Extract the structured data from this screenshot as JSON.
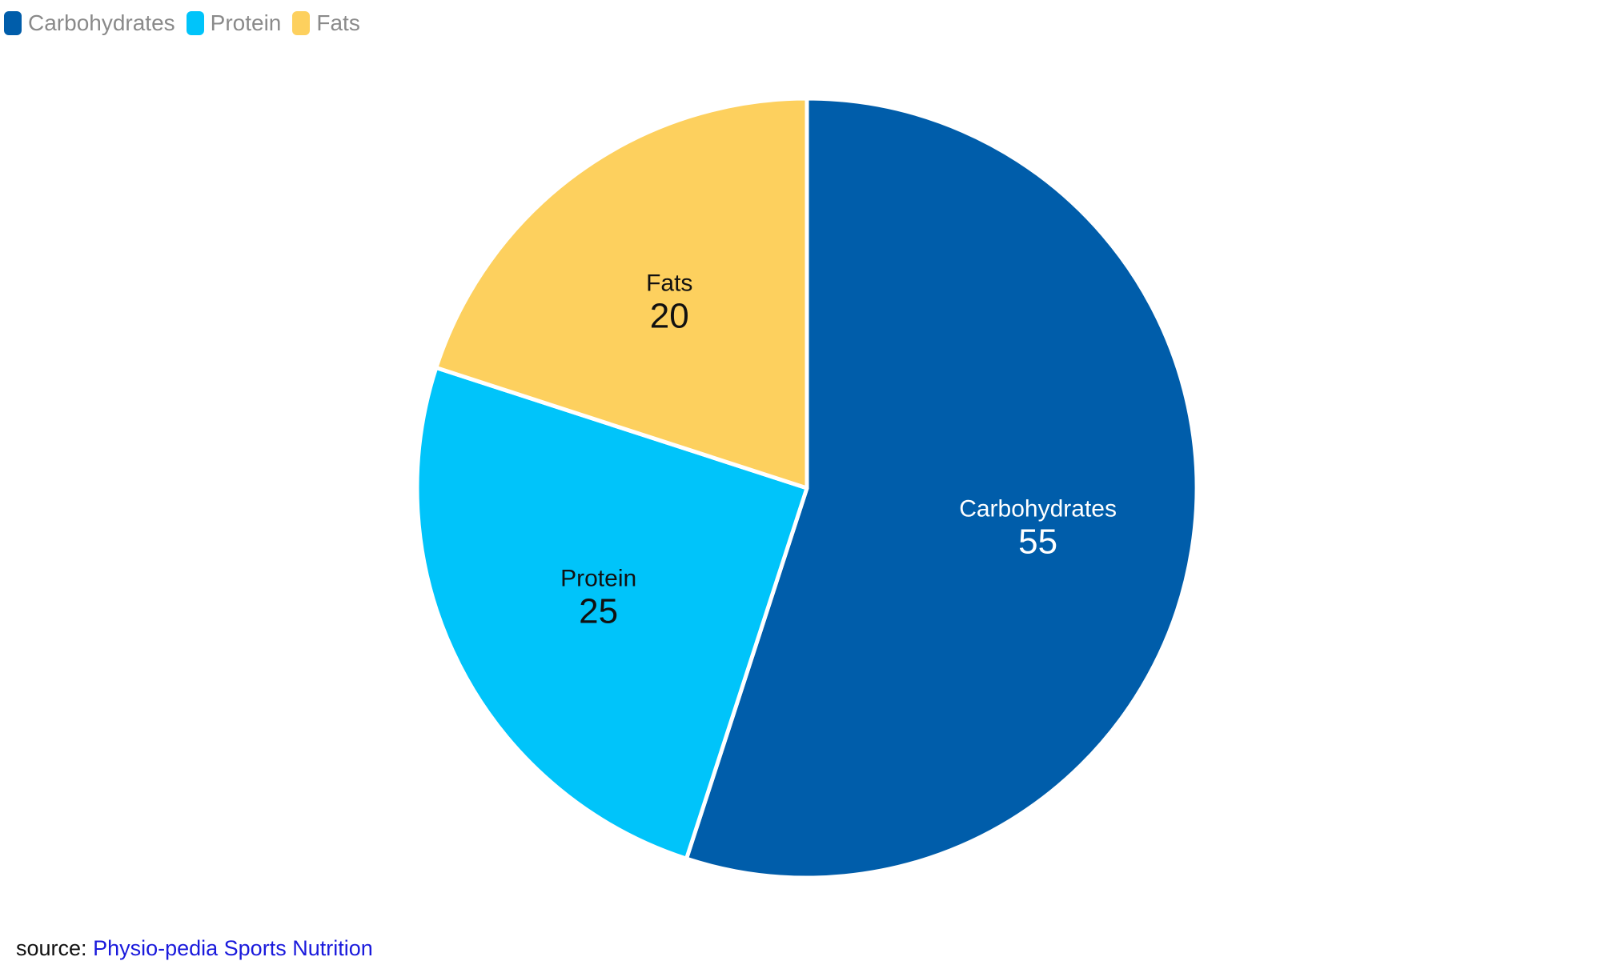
{
  "chart_data": {
    "type": "pie",
    "categories": [
      "Carbohydrates",
      "Protein",
      "Fats"
    ],
    "values": [
      55,
      25,
      20
    ],
    "colors": [
      "#005daa",
      "#00c4fa",
      "#fdd05e"
    ],
    "label_colors": [
      "#ffffff",
      "#111111",
      "#111111"
    ],
    "legend_position": "top-left",
    "start": "12 o'clock",
    "direction": "clockwise"
  },
  "legend": {
    "items": [
      {
        "label": "Carbohydrates",
        "color": "#005daa"
      },
      {
        "label": "Protein",
        "color": "#00c4fa"
      },
      {
        "label": "Fats",
        "color": "#fdd05e"
      }
    ]
  },
  "footer": {
    "source_prefix": "source:",
    "source_link": "Physio-pedia Sports Nutrition"
  }
}
